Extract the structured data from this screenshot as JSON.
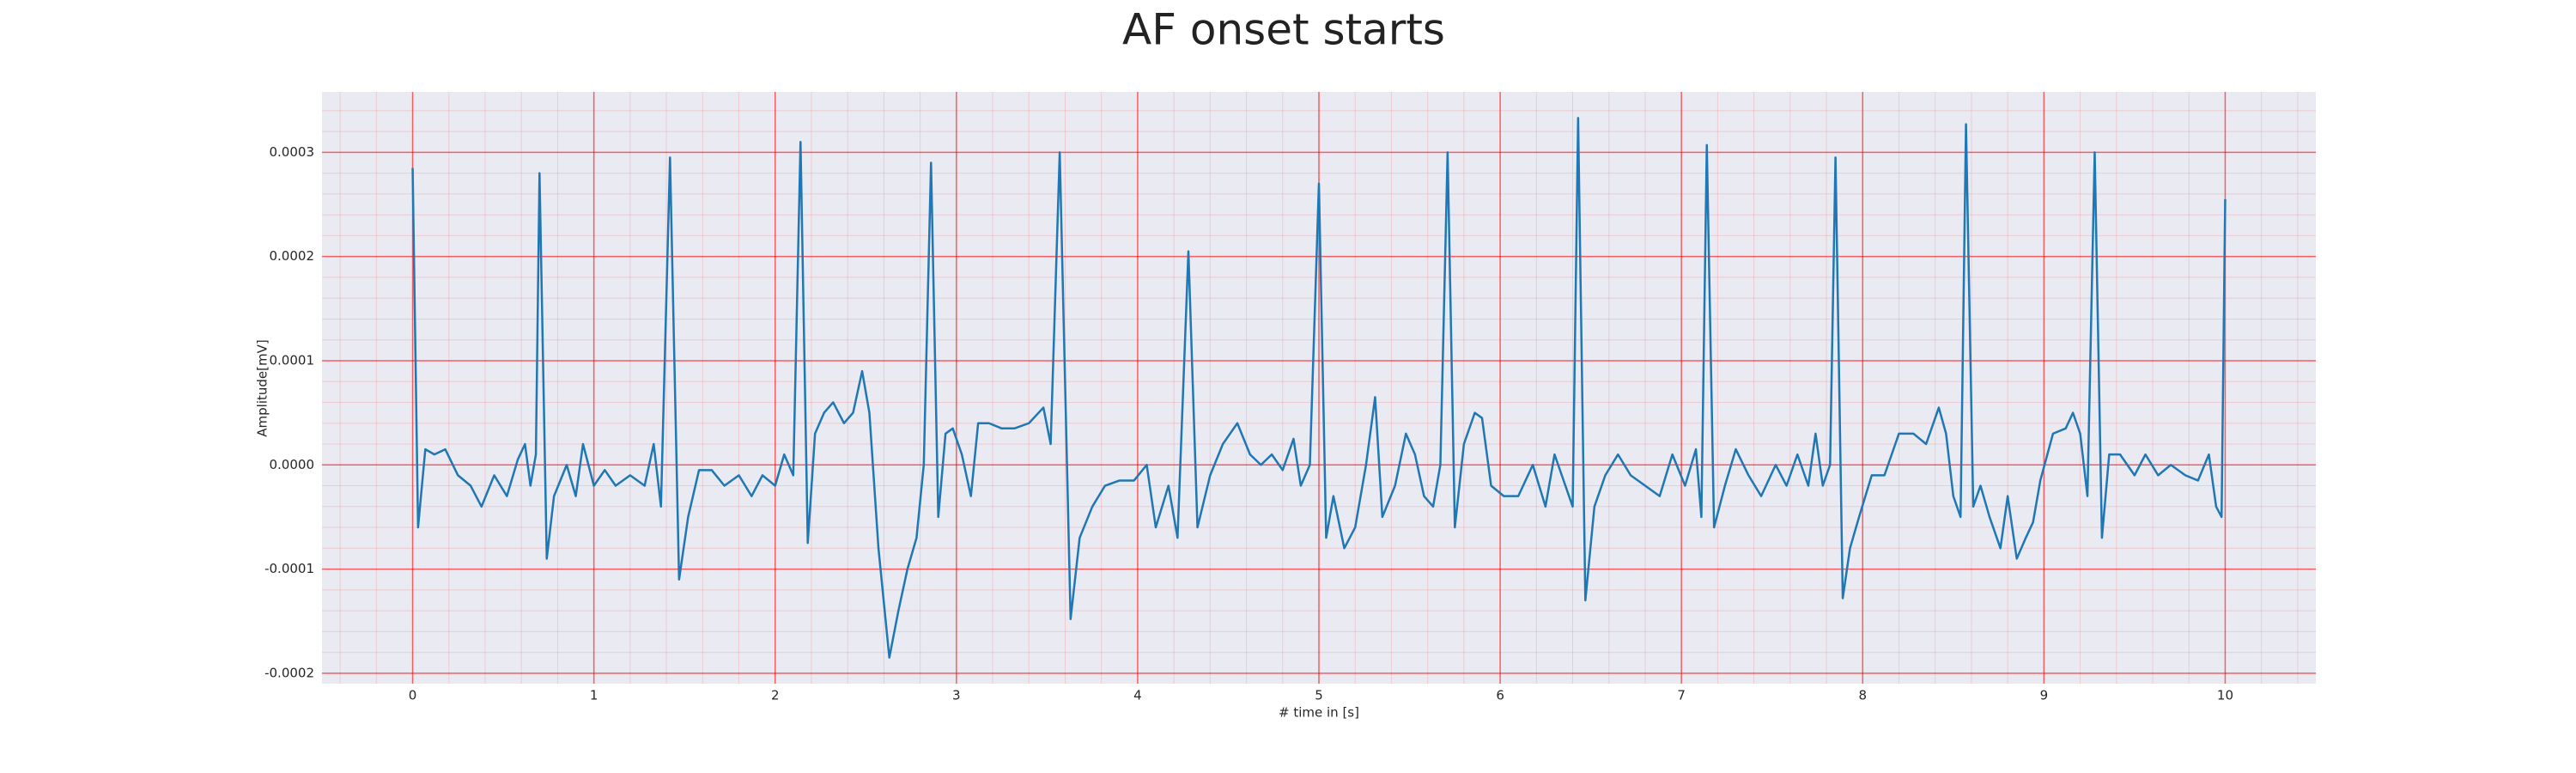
{
  "chart_data": {
    "type": "line",
    "title": "AF onset starts",
    "xlabel": "# time in [s]",
    "ylabel": "Amplitude[mV]",
    "color": "#1f77b4",
    "grid": true,
    "minor_grid": true,
    "minor_divisions": 5,
    "xlim": [
      -0.5,
      10.5
    ],
    "ylim": [
      -0.00021,
      0.000358
    ],
    "xticks": [
      0,
      1,
      2,
      3,
      4,
      5,
      6,
      7,
      8,
      9,
      10
    ],
    "yticks": [
      -0.0002,
      -0.0001,
      {
        "value": 0,
        "label": "0.0000"
      },
      0.0001,
      0.0002,
      0.0003
    ],
    "x": [
      0,
      0.03,
      0.07,
      0.12,
      0.18,
      0.25,
      0.32,
      0.38,
      0.45,
      0.52,
      0.58,
      0.62,
      0.65,
      0.68,
      0.7,
      0.74,
      0.78,
      0.85,
      0.9,
      0.94,
      1.0,
      1.06,
      1.12,
      1.2,
      1.28,
      1.33,
      1.37,
      1.42,
      1.47,
      1.52,
      1.58,
      1.65,
      1.72,
      1.8,
      1.87,
      1.93,
      2.0,
      2.05,
      2.1,
      2.14,
      2.18,
      2.22,
      2.27,
      2.32,
      2.38,
      2.43,
      2.48,
      2.52,
      2.57,
      2.63,
      2.68,
      2.73,
      2.78,
      2.82,
      2.86,
      2.9,
      2.94,
      2.98,
      3.03,
      3.08,
      3.12,
      3.18,
      3.25,
      3.32,
      3.4,
      3.48,
      3.52,
      3.57,
      3.63,
      3.68,
      3.75,
      3.82,
      3.9,
      3.98,
      4.05,
      4.1,
      4.17,
      4.22,
      4.28,
      4.33,
      4.4,
      4.47,
      4.55,
      4.62,
      4.68,
      4.74,
      4.8,
      4.86,
      4.9,
      4.95,
      5.0,
      5.04,
      5.08,
      5.14,
      5.2,
      5.26,
      5.31,
      5.35,
      5.42,
      5.48,
      5.53,
      5.58,
      5.63,
      5.67,
      5.71,
      5.75,
      5.8,
      5.86,
      5.9,
      5.95,
      6.02,
      6.1,
      6.18,
      6.25,
      6.3,
      6.36,
      6.4,
      6.43,
      6.47,
      6.52,
      6.58,
      6.65,
      6.72,
      6.8,
      6.88,
      6.95,
      7.02,
      7.08,
      7.11,
      7.14,
      7.18,
      7.24,
      7.3,
      7.37,
      7.44,
      7.52,
      7.58,
      7.64,
      7.7,
      7.74,
      7.78,
      7.82,
      7.85,
      7.89,
      7.93,
      7.98,
      8.05,
      8.12,
      8.2,
      8.28,
      8.35,
      8.42,
      8.46,
      8.5,
      8.54,
      8.57,
      8.61,
      8.65,
      8.7,
      8.76,
      8.8,
      8.85,
      8.9,
      8.94,
      8.98,
      9.05,
      9.12,
      9.16,
      9.2,
      9.24,
      9.28,
      9.32,
      9.36,
      9.42,
      9.5,
      9.56,
      9.63,
      9.7,
      9.78,
      9.85,
      9.91,
      9.95,
      9.98,
      10.0
    ],
    "values": [
      0.000285,
      -6e-05,
      1.5e-05,
      1e-05,
      1.5e-05,
      -1e-05,
      -2e-05,
      -4e-05,
      -1e-05,
      -3e-05,
      5e-06,
      2e-05,
      -2e-05,
      1e-05,
      0.00028,
      -9e-05,
      -3e-05,
      0.0,
      -3e-05,
      2e-05,
      -2e-05,
      -5e-06,
      -2e-05,
      -1e-05,
      -2e-05,
      2e-05,
      -4e-05,
      0.000295,
      -0.00011,
      -5e-05,
      -5e-06,
      -5e-06,
      -2e-05,
      -1e-05,
      -3e-05,
      -1e-05,
      -2e-05,
      1e-05,
      -1e-05,
      0.00031,
      -7.5e-05,
      3e-05,
      5e-05,
      6e-05,
      4e-05,
      5e-05,
      9e-05,
      5e-05,
      -8e-05,
      -0.000185,
      -0.00014,
      -0.0001,
      -7e-05,
      0.0,
      0.00029,
      -5e-05,
      3e-05,
      3.5e-05,
      1e-05,
      -3e-05,
      4e-05,
      4e-05,
      3.5e-05,
      3.5e-05,
      4e-05,
      5.5e-05,
      2e-05,
      0.0003,
      -0.000148,
      -7e-05,
      -4e-05,
      -2e-05,
      -1.5e-05,
      -1.5e-05,
      0.0,
      -6e-05,
      -2e-05,
      -7e-05,
      0.000205,
      -6e-05,
      -1e-05,
      2e-05,
      4e-05,
      1e-05,
      0.0,
      1e-05,
      -5e-06,
      2.5e-05,
      -2e-05,
      0.0,
      0.00027,
      -7e-05,
      -3e-05,
      -8e-05,
      -6e-05,
      0.0,
      6.5e-05,
      -5e-05,
      -2e-05,
      3e-05,
      1e-05,
      -3e-05,
      -4e-05,
      0.0,
      0.0003,
      -6e-05,
      2e-05,
      5e-05,
      4.5e-05,
      -2e-05,
      -3e-05,
      -3e-05,
      0.0,
      -4e-05,
      1e-05,
      -2e-05,
      -4e-05,
      0.000333,
      -0.00013,
      -4e-05,
      -1e-05,
      1e-05,
      -1e-05,
      -2e-05,
      -3e-05,
      1e-05,
      -2e-05,
      1.5e-05,
      -5e-05,
      0.000307,
      -6e-05,
      -2e-05,
      1.5e-05,
      -1e-05,
      -3e-05,
      0.0,
      -2e-05,
      1e-05,
      -2e-05,
      3e-05,
      -2e-05,
      0.0,
      0.000295,
      -0.000128,
      -8e-05,
      -5e-05,
      -1e-05,
      -1e-05,
      3e-05,
      3e-05,
      2e-05,
      5.5e-05,
      3e-05,
      -3e-05,
      -5e-05,
      0.000327,
      -4e-05,
      -2e-05,
      -5e-05,
      -8e-05,
      -3e-05,
      -9e-05,
      -7e-05,
      -5.5e-05,
      -1.5e-05,
      3e-05,
      3.5e-05,
      5e-05,
      3e-05,
      -3e-05,
      0.0003,
      -7e-05,
      1e-05,
      1e-05,
      -1e-05,
      1e-05,
      -1e-05,
      0.0,
      -1e-05,
      -1.5e-05,
      1e-05,
      -4e-05,
      -5e-05,
      0.000255
    ]
  }
}
